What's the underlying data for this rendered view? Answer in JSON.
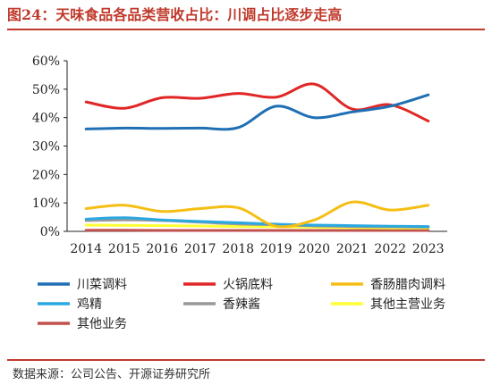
{
  "header": {
    "title": "图24：天味食品各品类营收占比：川调占比逐步走高"
  },
  "footer": {
    "source": "数据来源：公司公告、开源证券研究所"
  },
  "chart_data": {
    "type": "line",
    "title": "图24：天味食品各品类营收占比：川调占比逐步走高",
    "xlabel": "",
    "ylabel": "",
    "x": [
      "2014",
      "2015",
      "2016",
      "2017",
      "2018",
      "2019",
      "2020",
      "2021",
      "2022",
      "2023"
    ],
    "yticks": [
      "0%",
      "10%",
      "20%",
      "30%",
      "40%",
      "50%",
      "60%"
    ],
    "ylim": [
      0,
      60
    ],
    "grid": false,
    "legend": "bottom",
    "series": [
      {
        "name": "川菜调料",
        "color": "#1F6FB5",
        "values": [
          36.0,
          36.3,
          36.2,
          36.3,
          36.5,
          44.0,
          40.0,
          42.0,
          44.0,
          48.0
        ]
      },
      {
        "name": "火锅底料",
        "color": "#E02626",
        "values": [
          45.5,
          43.3,
          47.0,
          46.8,
          48.5,
          47.2,
          51.8,
          43.0,
          44.5,
          38.8
        ]
      },
      {
        "name": "香肠腊肉调料",
        "color": "#F5BE14",
        "values": [
          8.0,
          9.2,
          7.0,
          8.0,
          8.3,
          1.8,
          4.0,
          10.3,
          7.5,
          9.2
        ]
      },
      {
        "name": "鸡精",
        "color": "#2BA8E0",
        "values": [
          4.3,
          4.8,
          4.0,
          3.5,
          3.0,
          2.5,
          2.2,
          2.0,
          1.8,
          1.7
        ]
      },
      {
        "name": "香辣酱",
        "color": "#999999",
        "values": [
          3.8,
          4.0,
          3.8,
          3.2,
          2.6,
          2.3,
          1.9,
          1.7,
          1.6,
          1.5
        ]
      },
      {
        "name": "其他主营业务",
        "color": "#FFFF33",
        "values": [
          2.2,
          2.1,
          2.0,
          1.9,
          1.7,
          1.6,
          1.4,
          1.3,
          1.2,
          1.2
        ]
      },
      {
        "name": "其他业务",
        "color": "#C0504D",
        "values": [
          0.4,
          0.4,
          0.3,
          0.3,
          0.3,
          0.3,
          0.3,
          0.3,
          0.3,
          0.3
        ]
      }
    ]
  }
}
